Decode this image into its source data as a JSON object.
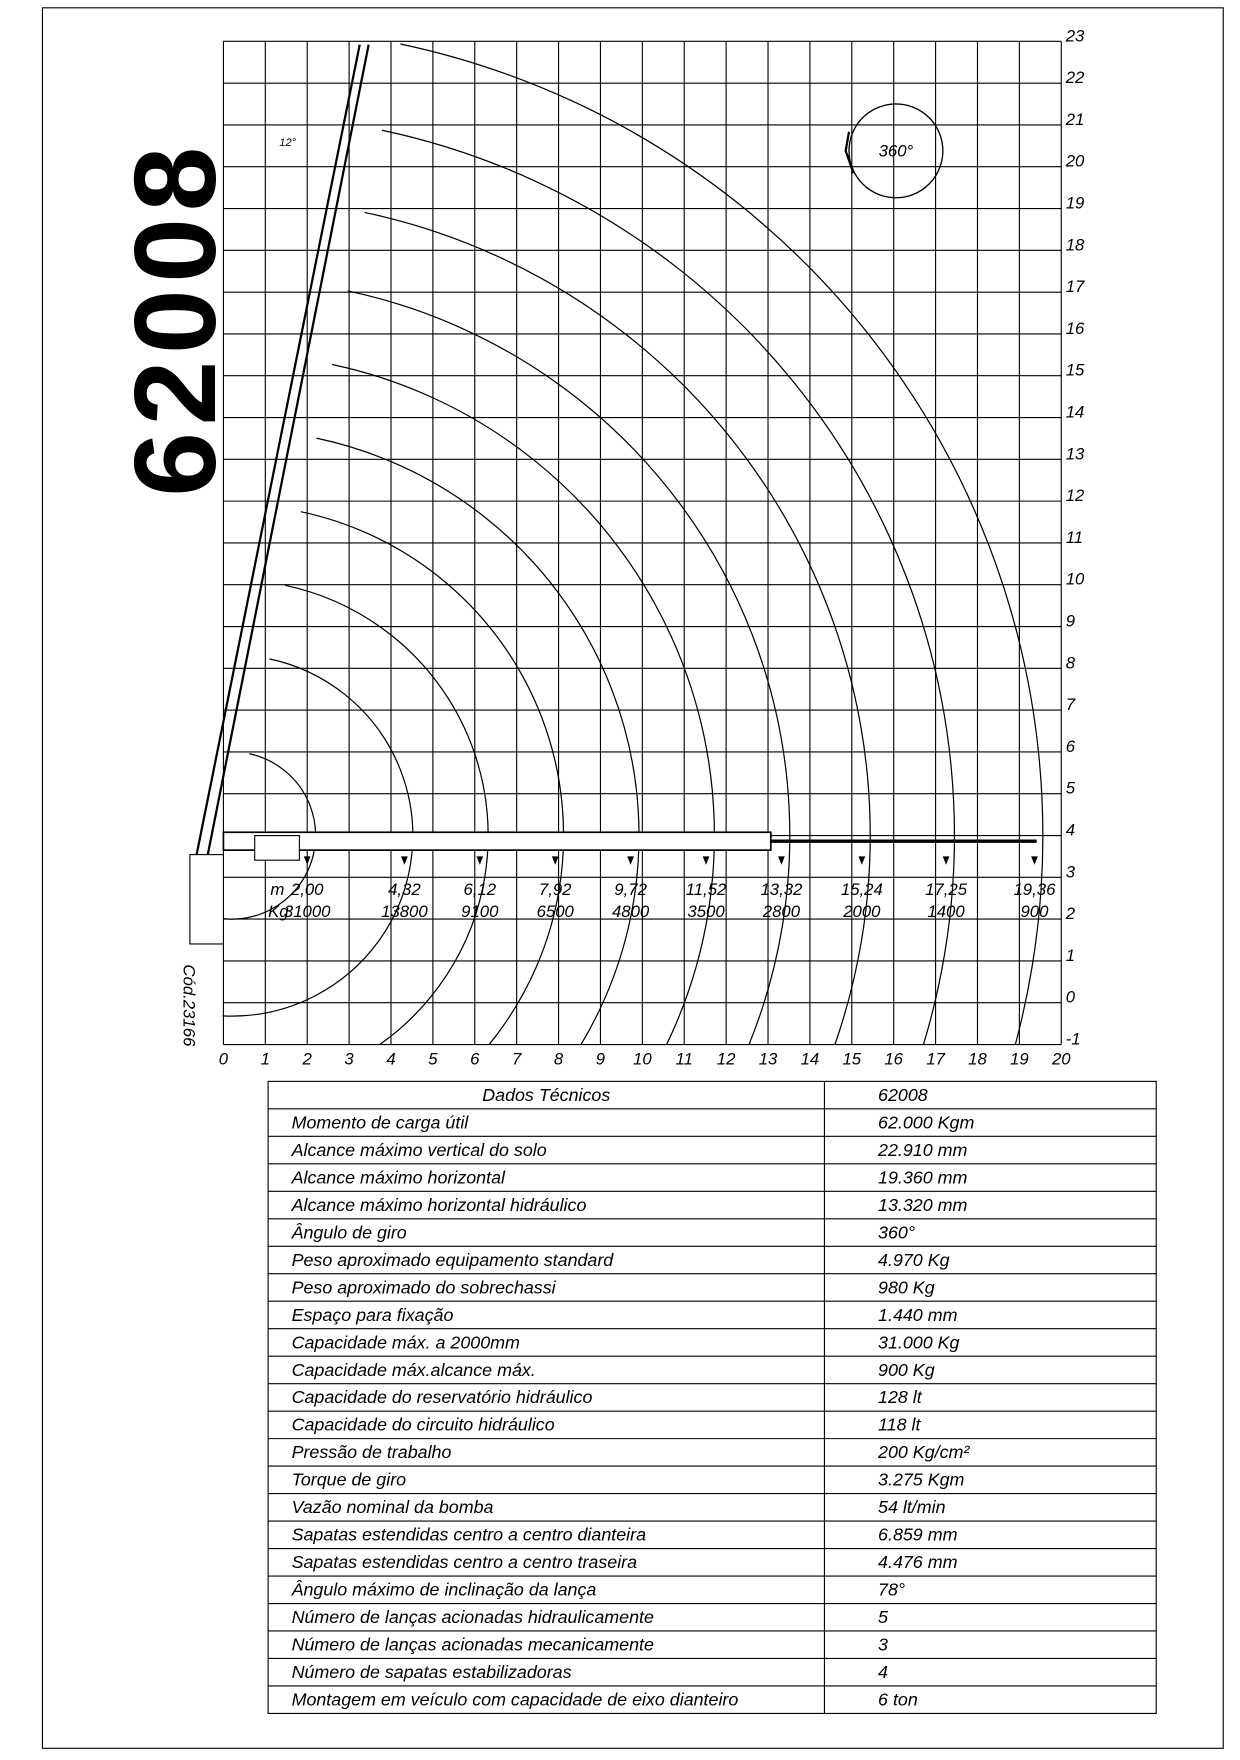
{
  "title": "62008",
  "code": "Cód.23166",
  "diagram": {
    "rotation_label": "360°",
    "angle_label": "12°",
    "reach_unit": "m",
    "load_unit": "Kg",
    "xticks": [
      0,
      1,
      2,
      3,
      4,
      5,
      6,
      7,
      8,
      9,
      10,
      11,
      12,
      13,
      14,
      15,
      16,
      17,
      18,
      19,
      20
    ],
    "yticks": [
      -1,
      0,
      1,
      2,
      3,
      4,
      5,
      6,
      7,
      8,
      9,
      10,
      11,
      12,
      13,
      14,
      15,
      16,
      17,
      18,
      19,
      20,
      21,
      22,
      23
    ],
    "xlim": [
      0,
      20
    ],
    "ylim": [
      -1,
      23
    ],
    "loads": [
      {
        "reach": {
          "value": 2.0,
          "label": "2,00"
        },
        "kg": 31000
      },
      {
        "reach": {
          "value": 4.32,
          "label": "4,32"
        },
        "kg": 13800
      },
      {
        "reach": {
          "value": 6.12,
          "label": "6,12"
        },
        "kg": 9100
      },
      {
        "reach": {
          "value": 7.92,
          "label": "7,92"
        },
        "kg": 6500
      },
      {
        "reach": {
          "value": 9.72,
          "label": "9,72"
        },
        "kg": 4800
      },
      {
        "reach": {
          "value": 11.52,
          "label": "11,52"
        },
        "kg": 3500
      },
      {
        "reach": {
          "value": 13.32,
          "label": "13,32"
        },
        "kg": 2800
      },
      {
        "reach": {
          "value": 15.24,
          "label": "15,24"
        },
        "kg": 2000
      },
      {
        "reach": {
          "value": 17.25,
          "label": "17,25"
        },
        "kg": 1400
      },
      {
        "reach": {
          "value": 19.36,
          "label": "19,36"
        },
        "kg": 900
      }
    ]
  },
  "table": {
    "header": [
      "Dados Técnicos",
      "62008"
    ],
    "rows": [
      [
        "Momento de carga útil",
        "62.000 Kgm"
      ],
      [
        "Alcance máximo vertical do solo",
        "22.910 mm"
      ],
      [
        "Alcance máximo horizontal",
        "19.360 mm"
      ],
      [
        "Alcance máximo  horizontal hidráulico",
        "13.320 mm"
      ],
      [
        "Ângulo de giro",
        "360°"
      ],
      [
        "Peso aproximado equipamento standard",
        "4.970 Kg"
      ],
      [
        "Peso aproximado do sobrechassi",
        "980 Kg"
      ],
      [
        "Espaço para fixação",
        "1.440 mm"
      ],
      [
        "Capacidade máx. a 2000mm",
        "31.000 Kg"
      ],
      [
        "Capacidade máx.alcance máx.",
        "900 Kg"
      ],
      [
        "Capacidade do reservatório hidráulico",
        "128 lt"
      ],
      [
        "Capacidade do circuito hidráulico",
        "118 lt"
      ],
      [
        "Pressão de trabalho",
        "200 Kg/cm²"
      ],
      [
        "Torque de giro",
        "3.275 Kgm"
      ],
      [
        "Vazão nominal da bomba",
        "54 lt/min"
      ],
      [
        "Sapatas estendidas centro a centro dianteira",
        "6.859 mm"
      ],
      [
        "Sapatas estendidas centro a centro traseira",
        "4.476 mm"
      ],
      [
        "Ângulo máximo de inclinação da lança",
        "78°"
      ],
      [
        "Número de lanças acionadas hidraulicamente",
        "5"
      ],
      [
        "Número de lanças acionadas mecanicamente",
        "3"
      ],
      [
        "Número de sapatas estabilizadoras",
        "4"
      ],
      [
        "Montagem em veículo com capacidade de eixo dianteiro",
        "6 ton"
      ]
    ]
  }
}
